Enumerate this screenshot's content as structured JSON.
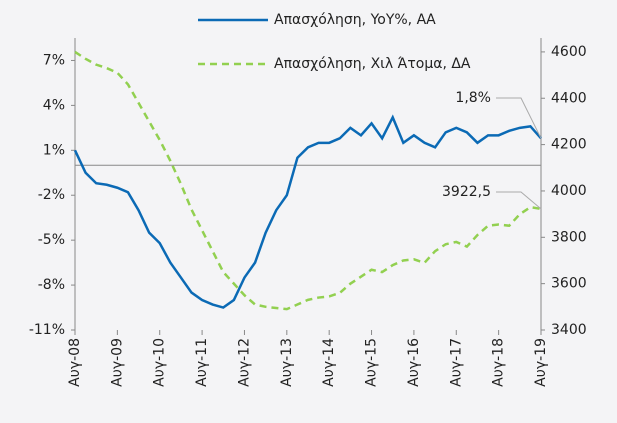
{
  "chart_data": {
    "type": "line",
    "categories": [
      "Αυγ-08",
      null,
      null,
      null,
      "Αυγ-09",
      null,
      null,
      null,
      "Αυγ-10",
      null,
      null,
      null,
      "Αυγ-11",
      null,
      null,
      null,
      "Αυγ-12",
      null,
      null,
      null,
      "Αυγ-13",
      null,
      null,
      null,
      "Αυγ-14",
      null,
      null,
      null,
      "Αυγ-15",
      null,
      null,
      null,
      "Αυγ-16",
      null,
      null,
      null,
      "Αυγ-17",
      null,
      null,
      null,
      "Αυγ-18",
      null,
      null,
      null,
      "Αυγ-19"
    ],
    "series": [
      {
        "name": "Απασχόληση, YoY%, ΑΑ",
        "color": "#0b6ab5",
        "dash": false,
        "axis": "y",
        "values": [
          1.0,
          -0.5,
          -1.2,
          -1.3,
          -1.5,
          -1.8,
          -3.0,
          -4.5,
          -5.2,
          -6.5,
          -7.5,
          -8.5,
          -9.0,
          -9.3,
          -9.5,
          -9.0,
          -7.5,
          -6.5,
          -4.5,
          -3.0,
          -2.0,
          0.5,
          1.2,
          1.5,
          1.5,
          1.8,
          2.5,
          2.0,
          2.8,
          1.8,
          3.2,
          1.5,
          2.0,
          1.5,
          1.2,
          2.2,
          2.5,
          2.2,
          1.5,
          2.0,
          2.0,
          2.3,
          2.5,
          2.6,
          1.8
        ],
        "value_labels": [
          null,
          null,
          null,
          null,
          null,
          null,
          null,
          null,
          null,
          null,
          null,
          null,
          null,
          null,
          null,
          null,
          null,
          null,
          null,
          null,
          null,
          null,
          null,
          null,
          null,
          null,
          null,
          null,
          null,
          null,
          null,
          null,
          null,
          null,
          null,
          null,
          null,
          null,
          null,
          null,
          null,
          null,
          null,
          null,
          "1,8%"
        ]
      },
      {
        "name": "Απασχόληση, Χιλ Άτομα, ΔΑ",
        "color": "#92d050",
        "dash": true,
        "axis": "y2",
        "values": [
          4600,
          4570,
          4545,
          4530,
          4510,
          4460,
          4380,
          4300,
          4220,
          4130,
          4030,
          3920,
          3830,
          3740,
          3650,
          3600,
          3550,
          3510,
          3500,
          3495,
          3490,
          3510,
          3530,
          3540,
          3545,
          3560,
          3600,
          3630,
          3660,
          3650,
          3680,
          3700,
          3705,
          3690,
          3740,
          3770,
          3780,
          3760,
          3810,
          3850,
          3855,
          3850,
          3900,
          3930,
          3922.5
        ],
        "value_labels": [
          null,
          null,
          null,
          null,
          null,
          null,
          null,
          null,
          null,
          null,
          null,
          null,
          null,
          null,
          null,
          null,
          null,
          null,
          null,
          null,
          null,
          null,
          null,
          null,
          null,
          null,
          null,
          null,
          null,
          null,
          null,
          null,
          null,
          null,
          null,
          null,
          null,
          null,
          null,
          null,
          null,
          null,
          null,
          null,
          "3922,5"
        ]
      }
    ],
    "ylim": [
      -11,
      8.5
    ],
    "yticks": [
      {
        "value": -11,
        "label": "-11%"
      },
      {
        "value": -8,
        "label": "-8%"
      },
      {
        "value": -5,
        "label": "-5%"
      },
      {
        "value": -2,
        "label": "-2%"
      },
      {
        "value": 1,
        "label": "1%"
      },
      {
        "value": 4,
        "label": "4%"
      },
      {
        "value": 7,
        "label": "7%"
      }
    ],
    "y2lim": [
      3400,
      4660
    ],
    "y2ticks": [
      3400,
      3600,
      3800,
      4000,
      4200,
      4400,
      4600
    ],
    "zero_line": 0,
    "legend": "top"
  }
}
